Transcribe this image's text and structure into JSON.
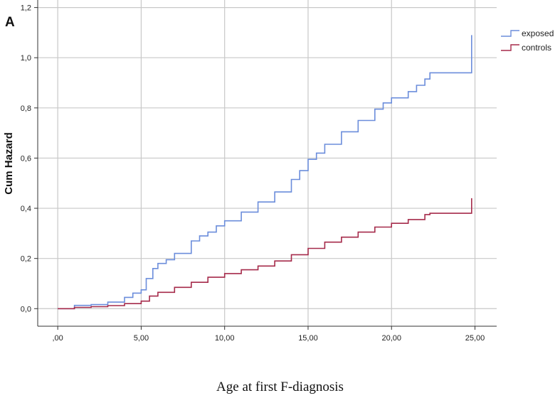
{
  "panel_label": "A",
  "colors": {
    "exposed": "#6b8ddb",
    "controls": "#a52a4a",
    "grid": "#c8c8c8",
    "axis": "#333333"
  },
  "chart_data": {
    "type": "line",
    "step": true,
    "title": "",
    "xlabel": "Age at first F-diagnosis",
    "ylabel": "Cum Hazard",
    "xlim": [
      -1.2,
      26.3
    ],
    "ylim": [
      -0.07,
      1.23
    ],
    "x_ticks": [
      0,
      5,
      10,
      15,
      20,
      25
    ],
    "x_tick_labels": [
      ",00",
      "5,00",
      "10,00",
      "15,00",
      "20,00",
      "25,00"
    ],
    "y_ticks": [
      0,
      0.2,
      0.4,
      0.6,
      0.8,
      1.0,
      1.2
    ],
    "y_tick_labels": [
      "0,0",
      "0,2",
      "0,4",
      "0,6",
      "0,8",
      "1,0",
      "1,2"
    ],
    "grid": true,
    "legend_position": "top-right",
    "series": [
      {
        "name": "exposed",
        "color": "#6b8ddb",
        "x": [
          0,
          1,
          2,
          3,
          4,
          4.5,
          5,
          5.3,
          5.7,
          6,
          6.5,
          7,
          8,
          8.5,
          9,
          9.5,
          10,
          11,
          12,
          13,
          14,
          14.5,
          15,
          15.5,
          16,
          17,
          18,
          19,
          19.5,
          20,
          21,
          21.5,
          22,
          22.3,
          23,
          24,
          24.8,
          24.8
        ],
        "values": [
          0,
          0.013,
          0.016,
          0.026,
          0.045,
          0.062,
          0.075,
          0.12,
          0.16,
          0.18,
          0.195,
          0.22,
          0.27,
          0.29,
          0.305,
          0.33,
          0.35,
          0.385,
          0.425,
          0.465,
          0.515,
          0.55,
          0.595,
          0.62,
          0.655,
          0.705,
          0.75,
          0.795,
          0.82,
          0.84,
          0.865,
          0.89,
          0.915,
          0.94,
          0.94,
          0.94,
          0.94,
          1.09
        ]
      },
      {
        "name": "controls",
        "color": "#a52a4a",
        "x": [
          0,
          1,
          2,
          3,
          4,
          5,
          5.5,
          6,
          7,
          8,
          9,
          10,
          11,
          12,
          13,
          14,
          15,
          16,
          17,
          18,
          19,
          20,
          21,
          22,
          22.3,
          23,
          24,
          24.8,
          24.8
        ],
        "values": [
          0,
          0.005,
          0.008,
          0.012,
          0.02,
          0.03,
          0.05,
          0.065,
          0.085,
          0.105,
          0.125,
          0.14,
          0.155,
          0.17,
          0.19,
          0.215,
          0.24,
          0.265,
          0.285,
          0.305,
          0.325,
          0.34,
          0.355,
          0.375,
          0.38,
          0.38,
          0.38,
          0.38,
          0.44
        ]
      }
    ]
  }
}
